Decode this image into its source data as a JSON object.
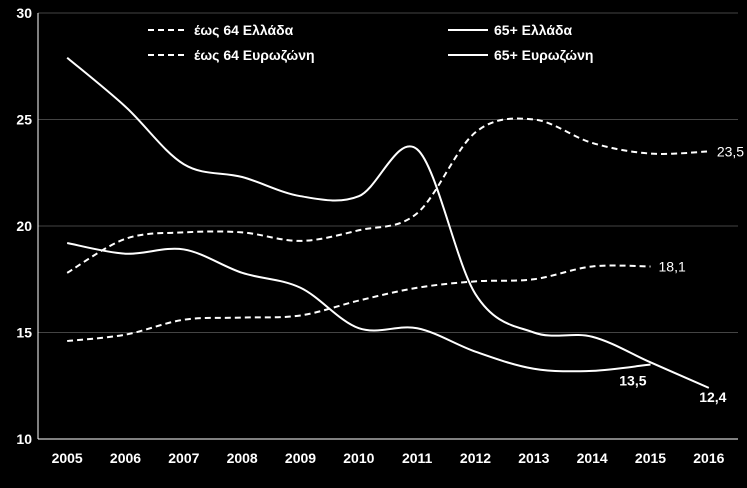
{
  "chart_data": {
    "type": "line",
    "x": [
      2005,
      2006,
      2007,
      2008,
      2009,
      2010,
      2011,
      2012,
      2013,
      2014,
      2015,
      2016
    ],
    "ylim": [
      10,
      30
    ],
    "yticks": [
      10,
      15,
      20,
      25,
      30
    ],
    "colors": {
      "background": "#000000",
      "line": "#ffffff",
      "axis": "#ffffff",
      "grid": "#444444"
    },
    "legend_placement": "top",
    "series": [
      {
        "name": "έως 64 Ελλάδα",
        "style": "dashed",
        "x": [
          2005,
          2006,
          2007,
          2008,
          2009,
          2010,
          2011,
          2012,
          2013,
          2014,
          2015,
          2016
        ],
        "values": [
          17.8,
          19.4,
          19.7,
          19.7,
          19.3,
          19.8,
          20.6,
          24.4,
          25.0,
          23.9,
          23.4,
          23.5
        ]
      },
      {
        "name": "έως 64 Ευρωζώνη",
        "style": "dashed",
        "x": [
          2005,
          2006,
          2007,
          2008,
          2009,
          2010,
          2011,
          2012,
          2013,
          2014,
          2015
        ],
        "values": [
          14.6,
          14.9,
          15.6,
          15.7,
          15.8,
          16.5,
          17.1,
          17.4,
          17.5,
          18.1,
          18.1
        ]
      },
      {
        "name": "65+ Ελλάδα",
        "style": "solid",
        "x": [
          2005,
          2006,
          2007,
          2008,
          2009,
          2010,
          2011,
          2012,
          2013,
          2014,
          2015,
          2016
        ],
        "values": [
          27.9,
          25.6,
          22.9,
          22.3,
          21.4,
          21.4,
          23.6,
          16.8,
          15.0,
          14.8,
          13.6,
          12.4
        ]
      },
      {
        "name": "65+ Ευρωζώνη",
        "style": "solid",
        "x": [
          2005,
          2006,
          2007,
          2008,
          2009,
          2010,
          2011,
          2012,
          2013,
          2014,
          2015
        ],
        "values": [
          19.2,
          18.7,
          18.9,
          17.8,
          17.1,
          15.2,
          15.2,
          14.1,
          13.3,
          13.2,
          13.5
        ]
      }
    ],
    "annotations": [
      {
        "text": "23,5",
        "x": 2016,
        "y": 23.5,
        "bold": false,
        "side": "right"
      },
      {
        "text": "18,1",
        "x": 2015,
        "y": 18.1,
        "bold": false,
        "side": "right"
      },
      {
        "text": "13,5",
        "x": 2015,
        "y": 13.5,
        "bold": true,
        "side": "below-left"
      },
      {
        "text": "12,4",
        "x": 2016,
        "y": 12.4,
        "bold": true,
        "side": "below"
      }
    ]
  }
}
